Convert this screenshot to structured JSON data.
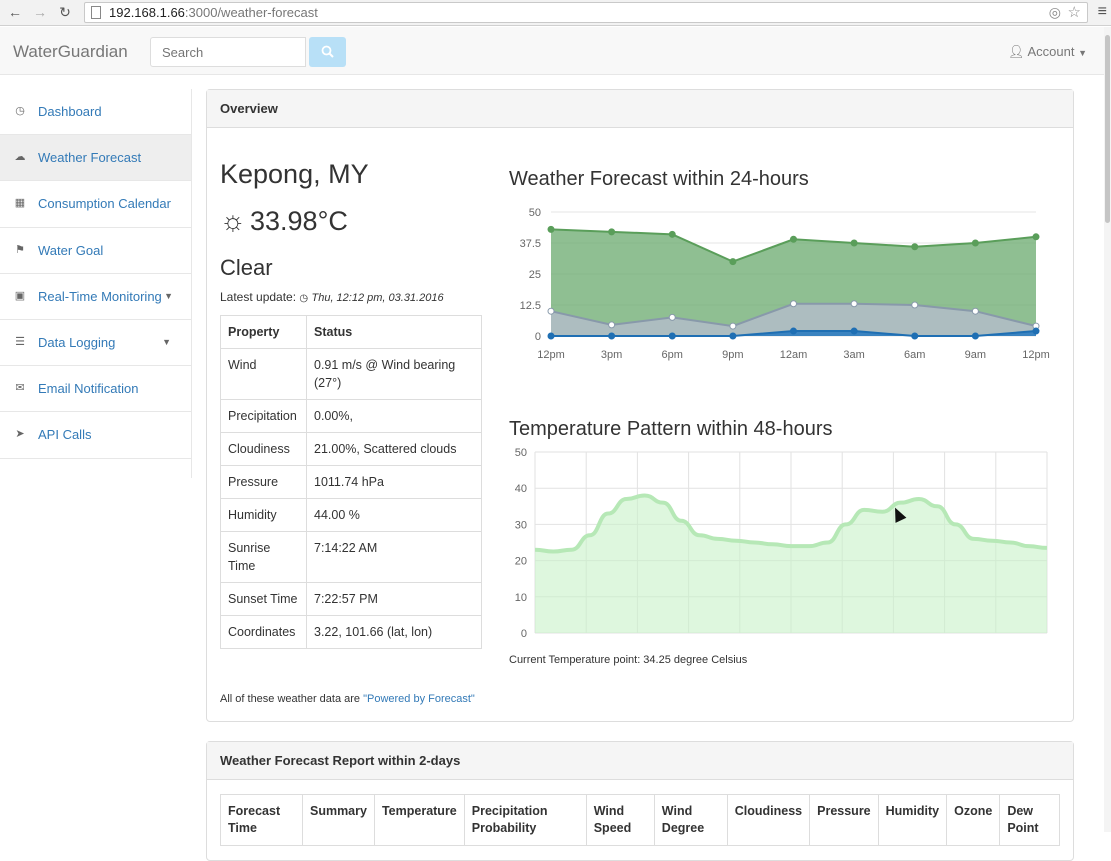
{
  "browser": {
    "url_host": "192.168.1.66",
    "url_rest": ":3000/weather-forecast"
  },
  "navbar": {
    "brand": "WaterGuardian",
    "search_placeholder": "Search",
    "account_label": "Account"
  },
  "sidebar": {
    "items": [
      {
        "label": "Dashboard",
        "icon": "dashboard-icon"
      },
      {
        "label": "Weather Forecast",
        "icon": "cloud-icon"
      },
      {
        "label": "Consumption Calendar",
        "icon": "calendar-icon"
      },
      {
        "label": "Water Goal",
        "icon": "flag-icon"
      },
      {
        "label": "Real-Time Monitoring",
        "icon": "monitor-icon"
      },
      {
        "label": "Data Logging",
        "icon": "list-icon"
      },
      {
        "label": "Email Notification",
        "icon": "envelope-icon"
      },
      {
        "label": "API Calls",
        "icon": "send-icon"
      }
    ]
  },
  "overview": {
    "heading": "Overview",
    "city": "Kepong, MY",
    "temperature": "33.98°C",
    "condition": "Clear",
    "update_label": "Latest update:",
    "update_time": "Thu, 12:12 pm, 03.31.2016",
    "table_headers": [
      "Property",
      "Status"
    ],
    "properties": [
      [
        "Wind",
        "0.91 m/s @ Wind bearing (27°)"
      ],
      [
        "Precipitation",
        "0.00%,"
      ],
      [
        "Cloudiness",
        "21.00%, Scattered clouds"
      ],
      [
        "Pressure",
        "1011.74 hPa"
      ],
      [
        "Humidity",
        "44.00 %"
      ],
      [
        "Sunrise Time",
        "7:14:22 AM"
      ],
      [
        "Sunset Time",
        "7:22:57 PM"
      ],
      [
        "Coordinates",
        "3.22, 101.66 (lat, lon)"
      ]
    ],
    "powered_prefix": "All of these weather data are ",
    "powered_link": "\"Powered by Forecast\"",
    "current_temp": "Current Temperature point: 34.25 degree Celsius"
  },
  "chart_data": [
    {
      "type": "area",
      "title": "Weather Forecast within 24-hours",
      "categories": [
        "12pm",
        "3pm",
        "6pm",
        "9pm",
        "12am",
        "3am",
        "6am",
        "9am",
        "12pm"
      ],
      "ylim": [
        0,
        50
      ],
      "yticks": [
        "0",
        "12.5",
        "25",
        "37.5",
        "50"
      ],
      "series": [
        {
          "values": [
            43,
            42,
            41,
            30,
            39,
            37.5,
            36,
            37.5,
            40
          ],
          "color": "#5a9e5a"
        },
        {
          "values": [
            10,
            4.5,
            7.5,
            4,
            13,
            13,
            12.5,
            10,
            4
          ],
          "color": "#8899aa"
        },
        {
          "values": [
            0,
            0,
            0,
            0,
            2,
            2,
            0,
            0,
            2
          ],
          "color": "#1f6fb3"
        }
      ]
    },
    {
      "type": "area",
      "title": "Temperature Pattern within 48-hours",
      "ylim": [
        0,
        50
      ],
      "yticks": [
        "0",
        "10",
        "20",
        "30",
        "40",
        "50"
      ],
      "values": [
        23,
        22.5,
        23,
        27,
        33,
        37,
        38,
        36,
        31,
        27,
        26,
        25.5,
        25,
        24.5,
        24,
        24,
        25,
        30,
        34,
        33.5,
        36,
        37,
        35,
        30,
        26,
        25.5,
        25,
        24,
        23.5
      ],
      "color": "#b6e8b6"
    }
  ],
  "report": {
    "heading": "Weather Forecast Report within 2-days",
    "headers": [
      "Forecast Time",
      "Summary",
      "Temperature",
      "Precipitation Probability",
      "Wind Speed",
      "Wind Degree",
      "Cloudiness",
      "Pressure",
      "Humidity",
      "Ozone",
      "Dew Point"
    ]
  }
}
